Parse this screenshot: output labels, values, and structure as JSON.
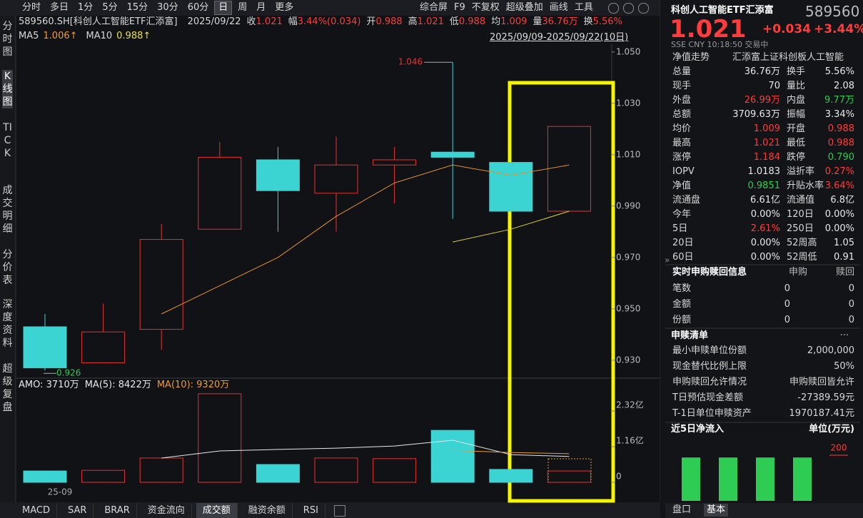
{
  "toolbar": {
    "periods": [
      "分时",
      "多日",
      "1分",
      "5分",
      "15分",
      "30分",
      "60分",
      "日",
      "周",
      "月",
      "更多"
    ],
    "active": 7,
    "tools": [
      "综合屏",
      "F9",
      "不复权",
      "超级叠加",
      "画线",
      "工具"
    ]
  },
  "sidebar": {
    "items": [
      "分时图",
      "K线图",
      "TICK",
      "成交明细",
      "分价表",
      "深度资料",
      "超级复盘"
    ],
    "active": 1
  },
  "info_bar": {
    "code": "589560.SH[科创人工智能ETF汇添富]",
    "date": "2025/09/22",
    "items": [
      {
        "label": "收",
        "value": "1.021"
      },
      {
        "label": "幅",
        "value": "3.44%(0.034)"
      },
      {
        "label": "开",
        "value": "0.988"
      },
      {
        "label": "高",
        "value": "1.021"
      },
      {
        "label": "低",
        "value": "0.988"
      },
      {
        "label": "均",
        "value": "1.009"
      },
      {
        "label": "量",
        "value": "36.76万"
      },
      {
        "label": "换",
        "value": "5.56%"
      }
    ],
    "date_range": "2025/09/09-2025/09/22(10日)"
  },
  "ma_legend": [
    {
      "label": "MA5",
      "value": "1.006↑",
      "color": "#f09a30"
    },
    {
      "label": "MA10",
      "value": "0.988↑",
      "color": "#e8e040"
    }
  ],
  "price_chart": {
    "ylim": [
      0.923,
      1.053
    ],
    "yticks": [
      {
        "value": 1.05,
        "label": "1.050"
      },
      {
        "value": 1.03,
        "label": "1.030"
      },
      {
        "value": 1.01,
        "label": "1.010"
      },
      {
        "value": 0.99,
        "label": "0.990"
      },
      {
        "value": 0.97,
        "label": "0.970"
      },
      {
        "value": 0.95,
        "label": "0.950"
      },
      {
        "value": 0.93,
        "label": "0.930"
      }
    ],
    "up_color": "#e8312f",
    "down_color": "#3cd3d3",
    "candles": [
      {
        "open": 0.943,
        "high": 0.948,
        "low": 0.926,
        "close": 0.927
      },
      {
        "open": 0.929,
        "high": 0.952,
        "low": 0.929,
        "close": 0.941
      },
      {
        "open": 0.942,
        "high": 0.983,
        "low": 0.934,
        "close": 0.977
      },
      {
        "open": 0.981,
        "high": 1.015,
        "low": 0.981,
        "close": 1.009
      },
      {
        "open": 1.008,
        "high": 1.013,
        "low": 0.98,
        "close": 0.996
      },
      {
        "open": 0.995,
        "high": 1.017,
        "low": 0.98,
        "close": 1.006
      },
      {
        "open": 1.006,
        "high": 1.013,
        "low": 0.991,
        "close": 1.008
      },
      {
        "open": 1.011,
        "high": 1.046,
        "low": 0.985,
        "close": 1.009
      },
      {
        "open": 1.007,
        "high": 1.007,
        "low": 0.988,
        "close": 0.988
      },
      {
        "open": 0.988,
        "high": 1.021,
        "low": 0.988,
        "close": 1.021
      }
    ],
    "ma_series": [
      {
        "name": "MA5",
        "color": "#e8902a",
        "values": [
          null,
          null,
          0.948,
          0.959,
          0.97,
          0.986,
          0.999,
          1.006,
          1.002,
          1.006
        ]
      },
      {
        "name": "MA10",
        "color": "#e0d030",
        "values": [
          null,
          null,
          null,
          null,
          null,
          null,
          null,
          0.976,
          0.981,
          0.988
        ]
      }
    ],
    "annotations": [
      {
        "label": "1.046",
        "value": 1.046,
        "candle": 7,
        "color": "#e8312f"
      },
      {
        "label": "0.926",
        "value": 0.926,
        "candle": 0,
        "color": "#2ecc52"
      }
    ],
    "date_label": "25-09"
  },
  "volume_chart": {
    "legend": [
      {
        "text": "AMO: 3710万",
        "color": "#e8e8e8"
      },
      {
        "text": "MA(5): 8422万",
        "color": "#e8e8e8"
      },
      {
        "text": "MA(10): 9320万",
        "color": "#f09a30"
      }
    ],
    "ylim": [
      0,
      2.9
    ],
    "yticks": [
      {
        "value": 2.32,
        "label": "2.32亿"
      },
      {
        "value": 1.16,
        "label": "1.16亿"
      },
      0
    ],
    "values": [
      0.37,
      0.39,
      0.79,
      2.88,
      0.58,
      0.79,
      0.77,
      1.69,
      0.42,
      0.37
    ],
    "ma_series": [
      {
        "name": "MA(5)",
        "color": "#e8e8e8",
        "values": [
          null,
          null,
          0.79,
          1.02,
          1.07,
          1.11,
          1.18,
          1.37,
          0.9,
          0.84
        ]
      },
      {
        "name": "MA(10)",
        "color": "#f09a30",
        "values": [
          null,
          null,
          null,
          null,
          null,
          null,
          null,
          1.04,
          0.97,
          0.93
        ]
      }
    ]
  },
  "bottom_tabs": {
    "items": [
      "MACD",
      "SAR",
      "BRAR",
      "资金流向",
      "成交额",
      "融资余额",
      "RSI"
    ],
    "active": 4
  },
  "quote": {
    "name": "科创人工智能ETF汇添富",
    "code": "589560",
    "price": "1.021",
    "change": "+0.034",
    "change_pct": "+3.44%",
    "status": "SSE  CNY  10:18:50  交易中",
    "fund_row": [
      "净值走势",
      "汇添富上证科创板人工智能"
    ],
    "rows": [
      [
        {
          "label": "总量",
          "value": "36.76万"
        },
        {
          "label": "换手",
          "value": "5.56%"
        }
      ],
      [
        {
          "label": "现手",
          "value": "70"
        },
        {
          "label": "量比",
          "value": "2.08"
        }
      ],
      [
        {
          "label": "外盘",
          "value": "26.99万",
          "color": "#ff3b3b"
        },
        {
          "label": "内盘",
          "value": "9.77万",
          "color": "#2ecc52"
        }
      ],
      [
        {
          "label": "总额",
          "value": "3709.63万"
        },
        {
          "label": "振幅",
          "value": "3.34%"
        }
      ],
      [
        {
          "label": "均价",
          "value": "1.009",
          "color": "#ff3b3b"
        },
        {
          "label": "开盘",
          "value": "0.988",
          "color": "#ff3b3b"
        }
      ],
      [
        {
          "label": "最高",
          "value": "1.021",
          "color": "#ff3b3b"
        },
        {
          "label": "最低",
          "value": "0.988",
          "color": "#ff3b3b"
        }
      ],
      [
        {
          "label": "涨停",
          "value": "1.184",
          "color": "#ff3b3b"
        },
        {
          "label": "跌停",
          "value": "0.790",
          "color": "#2ecc52"
        }
      ],
      [
        {
          "label": "IOPV",
          "value": "1.0183"
        },
        {
          "label": "溢折率",
          "value": "0.27%",
          "color": "#ff3b3b"
        }
      ],
      [
        {
          "label": "净值",
          "value": "0.9851",
          "color": "#2ecc52"
        },
        {
          "label": "升贴水率",
          "value": "3.64%",
          "color": "#ff3b3b"
        }
      ],
      [
        {
          "label": "流通盘",
          "value": "6.61亿"
        },
        {
          "label": "流通值",
          "value": "6.8亿"
        }
      ],
      [
        {
          "label": "今年",
          "value": "0.00%"
        },
        {
          "label": "120日",
          "value": "0.00%"
        }
      ],
      [
        {
          "label": "5日",
          "value": "2.61%",
          "color": "#ff3b3b"
        },
        {
          "label": "250日",
          "value": "0.00%"
        }
      ],
      [
        {
          "label": "20日",
          "value": "0.00%"
        },
        {
          "label": "52周高",
          "value": "1.05"
        }
      ],
      [
        {
          "label": "60日",
          "value": "0.00%"
        },
        {
          "label": "52周低",
          "value": "0.91"
        }
      ]
    ]
  },
  "creation": {
    "title": "实时申购赎回信息",
    "columns": [
      "申购",
      "赎回"
    ],
    "rows": [
      [
        "笔数",
        "0",
        "0"
      ],
      [
        "金额",
        "0",
        "0"
      ],
      [
        "份额",
        "0",
        "0"
      ]
    ]
  },
  "list": {
    "title": "申赎清单",
    "more": "···",
    "rows": [
      [
        "最小申赎单位份额",
        "2,000,000"
      ],
      [
        "现金替代比例上限",
        "50%"
      ],
      [
        "申购赎回允许情况",
        "申购赎回皆允许"
      ],
      [
        "T日预估现金差额",
        "-27389.59元"
      ],
      [
        "T-1日单位申赎资产",
        "1970187.41元"
      ]
    ]
  },
  "inflow": {
    "title": "近5日净流入",
    "unit": "单位(万元)",
    "ylim": [
      0,
      200
    ],
    "yticks": [
      200
    ],
    "color": "#2ecc52",
    "values": [
      190,
      190,
      190,
      190
    ]
  },
  "panel_tabs": [
    "盘口",
    "基本"
  ]
}
